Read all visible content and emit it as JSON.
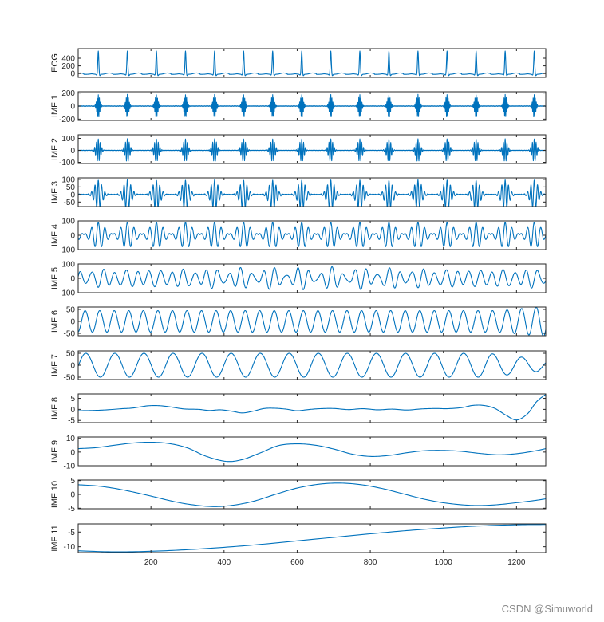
{
  "chart_data": {
    "type": "line",
    "title": "",
    "xlabel": "",
    "x_range": [
      1,
      1280
    ],
    "x_ticks": [
      200,
      400,
      600,
      800,
      1000,
      1200
    ],
    "x_tick_labels": [
      "200",
      "400",
      "600",
      "800",
      "1000",
      "1200"
    ],
    "panels": [
      {
        "name": "ECG",
        "ylabel": "ECG",
        "ylim": [
          -100,
          650
        ],
        "y_ticks": [
          0,
          200,
          400
        ],
        "y_tick_labels": [
          "0",
          "200",
          "400"
        ],
        "model": {
          "kind": "ecg",
          "period": 79.5,
          "phase": 56,
          "peak": 610,
          "trough": -40,
          "base": -20
        }
      },
      {
        "name": "IMF 1",
        "ylabel": "IMF 1",
        "ylim": [
          -220,
          220
        ],
        "y_ticks": [
          -200,
          0,
          200
        ],
        "y_tick_labels": [
          "-200",
          "0",
          "200"
        ],
        "model": {
          "kind": "burst",
          "period": 79.5,
          "phase": 56,
          "amp": 175,
          "freq": 0.35,
          "width": 4,
          "noise": 5
        }
      },
      {
        "name": "IMF 2",
        "ylabel": "IMF 2",
        "ylim": [
          -110,
          130
        ],
        "y_ticks": [
          -100,
          0,
          100
        ],
        "y_tick_labels": [
          "-100",
          "0",
          "100"
        ],
        "model": {
          "kind": "burst",
          "period": 79.5,
          "phase": 56,
          "amp": 95,
          "freq": 0.2,
          "width": 6,
          "noise": 2
        }
      },
      {
        "name": "IMF 3",
        "ylabel": "IMF 3",
        "ylim": [
          -80,
          110
        ],
        "y_ticks": [
          -50,
          0,
          50,
          100
        ],
        "y_tick_labels": [
          "-50",
          "0",
          "50",
          "100"
        ],
        "model": {
          "kind": "burst",
          "period": 79.5,
          "phase": 56,
          "amp": 95,
          "freq": 0.11,
          "width": 10,
          "noise": 3
        }
      },
      {
        "name": "IMF 4",
        "ylabel": "IMF 4",
        "ylim": [
          -100,
          100
        ],
        "y_ticks": [
          -100,
          0,
          100
        ],
        "y_tick_labels": [
          "-100",
          "0",
          "100"
        ],
        "model": {
          "kind": "burst",
          "period": 79.5,
          "phase": 56,
          "amp": 90,
          "freq": 0.055,
          "width": 18,
          "noise": 0
        }
      },
      {
        "name": "IMF 5",
        "ylabel": "IMF 5",
        "ylim": [
          -100,
          100
        ],
        "y_ticks": [
          -100,
          0,
          100
        ],
        "y_tick_labels": [
          "-100",
          "0",
          "100"
        ],
        "model": {
          "kind": "am",
          "period": 79.5,
          "phase": 56,
          "amp": 70,
          "freq": 0.032,
          "depth": 0.55
        }
      },
      {
        "name": "IMF 6",
        "ylabel": "IMF 6",
        "ylim": [
          -60,
          60
        ],
        "y_ticks": [
          -50,
          0,
          50
        ],
        "y_tick_labels": [
          "-50",
          "0",
          "50"
        ],
        "model": {
          "kind": "sine",
          "period": 39.8,
          "phase": 10,
          "amp": 45,
          "end_boost": 1.4
        }
      },
      {
        "name": "IMF 7",
        "ylabel": "IMF 7",
        "ylim": [
          -60,
          60
        ],
        "y_ticks": [
          -50,
          0,
          50
        ],
        "y_tick_labels": [
          "-50",
          "0",
          "50"
        ],
        "model": {
          "kind": "sine",
          "period": 79.5,
          "phase": 2,
          "amp": 50,
          "end_decay": 0.45
        }
      },
      {
        "name": "IMF 8",
        "ylabel": "IMF 8",
        "ylim": [
          -6,
          7
        ],
        "y_ticks": [
          -5,
          0,
          5
        ],
        "y_tick_labels": [
          "-5",
          "0",
          "5"
        ],
        "points": [
          [
            1,
            -0.6
          ],
          [
            40,
            -0.5
          ],
          [
            80,
            -0.2
          ],
          [
            120,
            0.3
          ],
          [
            150,
            0.6
          ],
          [
            190,
            1.6
          ],
          [
            220,
            1.7
          ],
          [
            250,
            1.2
          ],
          [
            290,
            0.2
          ],
          [
            330,
            0.0
          ],
          [
            360,
            -0.5
          ],
          [
            390,
            -0.2
          ],
          [
            420,
            -0.8
          ],
          [
            450,
            -1.6
          ],
          [
            480,
            -0.8
          ],
          [
            510,
            0.4
          ],
          [
            540,
            0.5
          ],
          [
            570,
            0.1
          ],
          [
            600,
            -0.6
          ],
          [
            630,
            -0.1
          ],
          [
            660,
            0.3
          ],
          [
            700,
            0.4
          ],
          [
            740,
            -0.1
          ],
          [
            780,
            0.3
          ],
          [
            820,
            -0.2
          ],
          [
            860,
            0.1
          ],
          [
            900,
            -0.3
          ],
          [
            940,
            0.2
          ],
          [
            980,
            0.4
          ],
          [
            1010,
            0.3
          ],
          [
            1050,
            0.8
          ],
          [
            1080,
            1.8
          ],
          [
            1110,
            1.8
          ],
          [
            1140,
            0.5
          ],
          [
            1170,
            -2.5
          ],
          [
            1200,
            -4.8
          ],
          [
            1230,
            -2.0
          ],
          [
            1255,
            3.5
          ],
          [
            1280,
            6.8
          ]
        ]
      },
      {
        "name": "IMF 9",
        "ylabel": "IMF 9",
        "ylim": [
          -10,
          11
        ],
        "y_ticks": [
          -10,
          0,
          10
        ],
        "y_tick_labels": [
          "-10",
          "0",
          "10"
        ],
        "points": [
          [
            1,
            2.5
          ],
          [
            50,
            3.2
          ],
          [
            100,
            5.0
          ],
          [
            150,
            6.6
          ],
          [
            200,
            7.2
          ],
          [
            250,
            6.2
          ],
          [
            300,
            3.0
          ],
          [
            350,
            -3.0
          ],
          [
            405,
            -6.8
          ],
          [
            450,
            -5.5
          ],
          [
            500,
            -0.5
          ],
          [
            550,
            4.8
          ],
          [
            600,
            6.0
          ],
          [
            650,
            5.0
          ],
          [
            700,
            2.2
          ],
          [
            750,
            -1.5
          ],
          [
            800,
            -3.2
          ],
          [
            850,
            -2.5
          ],
          [
            900,
            -0.5
          ],
          [
            950,
            1.0
          ],
          [
            1000,
            1.2
          ],
          [
            1050,
            0.5
          ],
          [
            1100,
            -1.0
          ],
          [
            1150,
            -2.0
          ],
          [
            1200,
            -1.2
          ],
          [
            1250,
            0.8
          ],
          [
            1280,
            2.5
          ]
        ]
      },
      {
        "name": "IMF 10",
        "ylabel": "IMF 10",
        "ylim": [
          -5.2,
          5.2
        ],
        "y_ticks": [
          -5,
          0,
          5
        ],
        "y_tick_labels": [
          "-5",
          "0",
          "5"
        ],
        "points": [
          [
            1,
            3.5
          ],
          [
            50,
            3.1
          ],
          [
            100,
            2.2
          ],
          [
            150,
            0.9
          ],
          [
            200,
            -0.6
          ],
          [
            250,
            -2.2
          ],
          [
            300,
            -3.5
          ],
          [
            365,
            -4.4
          ],
          [
            420,
            -4.0
          ],
          [
            480,
            -2.5
          ],
          [
            540,
            0.0
          ],
          [
            600,
            2.3
          ],
          [
            660,
            3.7
          ],
          [
            715,
            4.1
          ],
          [
            770,
            3.6
          ],
          [
            830,
            2.2
          ],
          [
            890,
            0.2
          ],
          [
            950,
            -1.8
          ],
          [
            1010,
            -3.2
          ],
          [
            1080,
            -4.0
          ],
          [
            1140,
            -3.8
          ],
          [
            1200,
            -3.0
          ],
          [
            1250,
            -2.2
          ],
          [
            1280,
            -1.6
          ]
        ]
      },
      {
        "name": "IMF 11",
        "ylabel": "IMF 11",
        "ylim": [
          -12,
          -2.2
        ],
        "y_ticks": [
          -10,
          -5
        ],
        "y_tick_labels": [
          "-10",
          "-5"
        ],
        "points": [
          [
            1,
            -11.4
          ],
          [
            100,
            -11.75
          ],
          [
            200,
            -11.55
          ],
          [
            300,
            -11.0
          ],
          [
            400,
            -10.2
          ],
          [
            500,
            -9.2
          ],
          [
            600,
            -8.0
          ],
          [
            700,
            -6.8
          ],
          [
            800,
            -5.6
          ],
          [
            900,
            -4.5
          ],
          [
            1000,
            -3.6
          ],
          [
            1100,
            -2.9
          ],
          [
            1200,
            -2.5
          ],
          [
            1280,
            -2.4
          ]
        ]
      }
    ]
  },
  "watermark": "CSDN @Simuworld"
}
